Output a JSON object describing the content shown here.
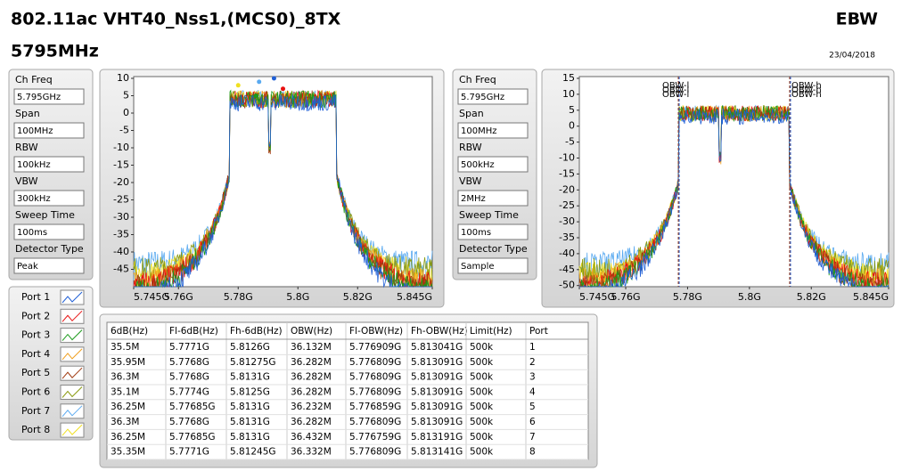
{
  "header": {
    "title": "802.11ac VHT40_Nss1,(MCS0)_8TX",
    "subtitle": "5795MHz",
    "tag": "EBW",
    "date": "23/04/2018"
  },
  "left_settings": [
    {
      "label": "Ch Freq",
      "value": "5.795GHz"
    },
    {
      "label": "Span",
      "value": "100MHz"
    },
    {
      "label": "RBW",
      "value": "100kHz"
    },
    {
      "label": "VBW",
      "value": "300kHz"
    },
    {
      "label": "Sweep Time",
      "value": "100ms"
    },
    {
      "label": "Detector Type",
      "value": "Peak"
    }
  ],
  "right_settings": [
    {
      "label": "Ch Freq",
      "value": "5.795GHz"
    },
    {
      "label": "Span",
      "value": "100MHz"
    },
    {
      "label": "RBW",
      "value": "500kHz"
    },
    {
      "label": "VBW",
      "value": "2MHz"
    },
    {
      "label": "Sweep Time",
      "value": "100ms"
    },
    {
      "label": "Detector Type",
      "value": "Sample"
    }
  ],
  "ports": [
    {
      "name": "Port 1",
      "color": "#1f5fd6"
    },
    {
      "name": "Port 2",
      "color": "#e81010"
    },
    {
      "name": "Port 3",
      "color": "#1a9a1a"
    },
    {
      "name": "Port 4",
      "color": "#f0a020"
    },
    {
      "name": "Port 5",
      "color": "#a03a10"
    },
    {
      "name": "Port 6",
      "color": "#8a9a10"
    },
    {
      "name": "Port 7",
      "color": "#5aaaf0"
    },
    {
      "name": "Port 8",
      "color": "#f0e020"
    }
  ],
  "plot1": {
    "yticks": [
      "10",
      "5",
      "0",
      "-5",
      "-10",
      "-15",
      "-20",
      "-25",
      "-30",
      "-35",
      "-40",
      "-45"
    ],
    "xticks": [
      "5.745G",
      "5.76G",
      "5.78G",
      "5.8G",
      "5.82G",
      "5.845G"
    ]
  },
  "plot2": {
    "yticks": [
      "15",
      "10",
      "5",
      "0",
      "-5",
      "-10",
      "-15",
      "-20",
      "-25",
      "-30",
      "-35",
      "-40",
      "-45",
      "-50"
    ],
    "xticks": [
      "5.745G",
      "5.76G",
      "5.78G",
      "5.8G",
      "5.82G",
      "5.845G"
    ],
    "marker_labels": [
      "OBW-l",
      "OBW-h"
    ]
  },
  "table": {
    "headers": [
      "6dB(Hz)",
      "Fl-6dB(Hz)",
      "Fh-6dB(Hz)",
      "OBW(Hz)",
      "Fl-OBW(Hz)",
      "Fh-OBW(Hz)",
      "Limit(Hz)",
      "Port"
    ],
    "rows": [
      [
        "35.5M",
        "5.7771G",
        "5.8126G",
        "36.132M",
        "5.776909G",
        "5.813041G",
        "500k",
        "1"
      ],
      [
        "35.95M",
        "5.7768G",
        "5.81275G",
        "36.282M",
        "5.776809G",
        "5.813091G",
        "500k",
        "2"
      ],
      [
        "36.3M",
        "5.7768G",
        "5.8131G",
        "36.282M",
        "5.776809G",
        "5.813091G",
        "500k",
        "3"
      ],
      [
        "35.1M",
        "5.7774G",
        "5.8125G",
        "36.282M",
        "5.776809G",
        "5.813091G",
        "500k",
        "4"
      ],
      [
        "36.25M",
        "5.77685G",
        "5.8131G",
        "36.232M",
        "5.776859G",
        "5.813091G",
        "500k",
        "5"
      ],
      [
        "36.3M",
        "5.7768G",
        "5.8131G",
        "36.282M",
        "5.776809G",
        "5.813091G",
        "500k",
        "6"
      ],
      [
        "36.25M",
        "5.77685G",
        "5.8131G",
        "36.432M",
        "5.776759G",
        "5.813191G",
        "500k",
        "7"
      ],
      [
        "35.35M",
        "5.7771G",
        "5.81245G",
        "36.332M",
        "5.776809G",
        "5.813141G",
        "500k",
        "8"
      ]
    ]
  }
}
